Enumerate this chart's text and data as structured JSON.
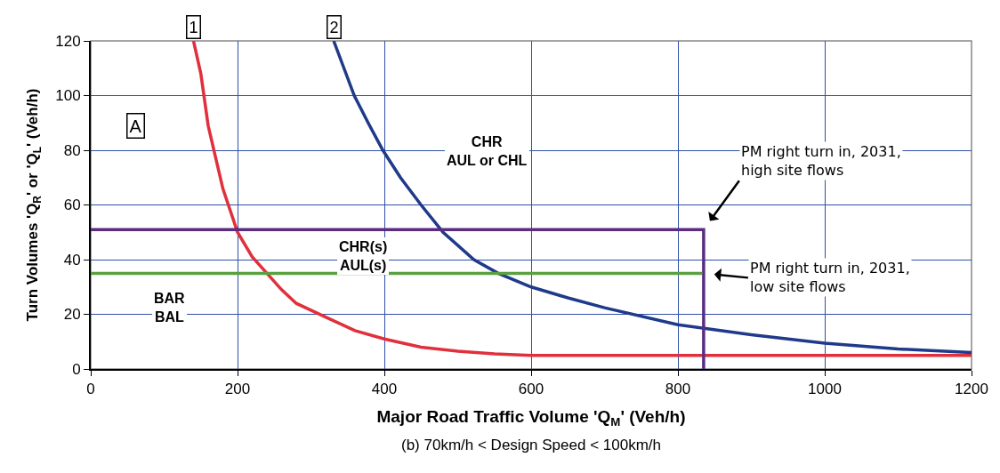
{
  "chart_data": {
    "type": "line",
    "xlabel": "Major Road Traffic Volume 'Q$_{M}$' (Veh/h)",
    "ylabel": "Turn Volumes 'Q$_{R}$' or 'Q$_{L}$' (Veh/h)",
    "xlim": [
      0,
      1200
    ],
    "xticks": [
      0,
      200,
      400,
      600,
      800,
      1000,
      1200
    ],
    "ylim": [
      0,
      120
    ],
    "yticks": [
      0,
      20,
      40,
      60,
      80,
      100,
      120
    ],
    "grid": true,
    "legend": false,
    "marker": "none",
    "line_style": "solid",
    "series": [
      {
        "name": "1",
        "color": "#e0303c",
        "x": [
          140,
          150,
          160,
          180,
          200,
          220,
          240,
          260,
          280,
          320,
          360,
          400,
          450,
          500,
          550,
          600,
          1200
        ],
        "values": [
          120,
          108,
          89,
          66,
          50,
          41,
          35,
          29,
          24,
          19,
          14,
          11,
          8,
          6.5,
          5.5,
          5,
          5
        ]
      },
      {
        "name": "2",
        "color": "#1f3a8a",
        "x": [
          331,
          345,
          359,
          378,
          398,
          422,
          450,
          480,
          522,
          555,
          600,
          650,
          700,
          800,
          900,
          1000,
          1100,
          1200
        ],
        "values": [
          120,
          110,
          100,
          90,
          80,
          70,
          60,
          50,
          40,
          35,
          30,
          26,
          22.4,
          16.2,
          12.5,
          9.4,
          7.3,
          6
        ]
      },
      {
        "color": "#5b2d82",
        "x": [
          0,
          835,
          835
        ],
        "values": [
          51,
          51,
          0
        ]
      },
      {
        "color": "#5aa040",
        "x": [
          0,
          833
        ],
        "values": [
          35,
          35
        ]
      }
    ],
    "annotations": [
      "A",
      "CHR\nAUL or CHL",
      "CHR(s)\nAUL(s)",
      "BAR\nBAL",
      {
        "text": "PM right turn in, 2031,\nhigh site flows",
        "x": 835,
        "y": 51
      },
      {
        "text": "PM right turn in, 2031,\nlow site flows",
        "x": 835,
        "y": 35
      },
      "(b) 70km/h < Design Speed < 100km/h"
    ]
  }
}
